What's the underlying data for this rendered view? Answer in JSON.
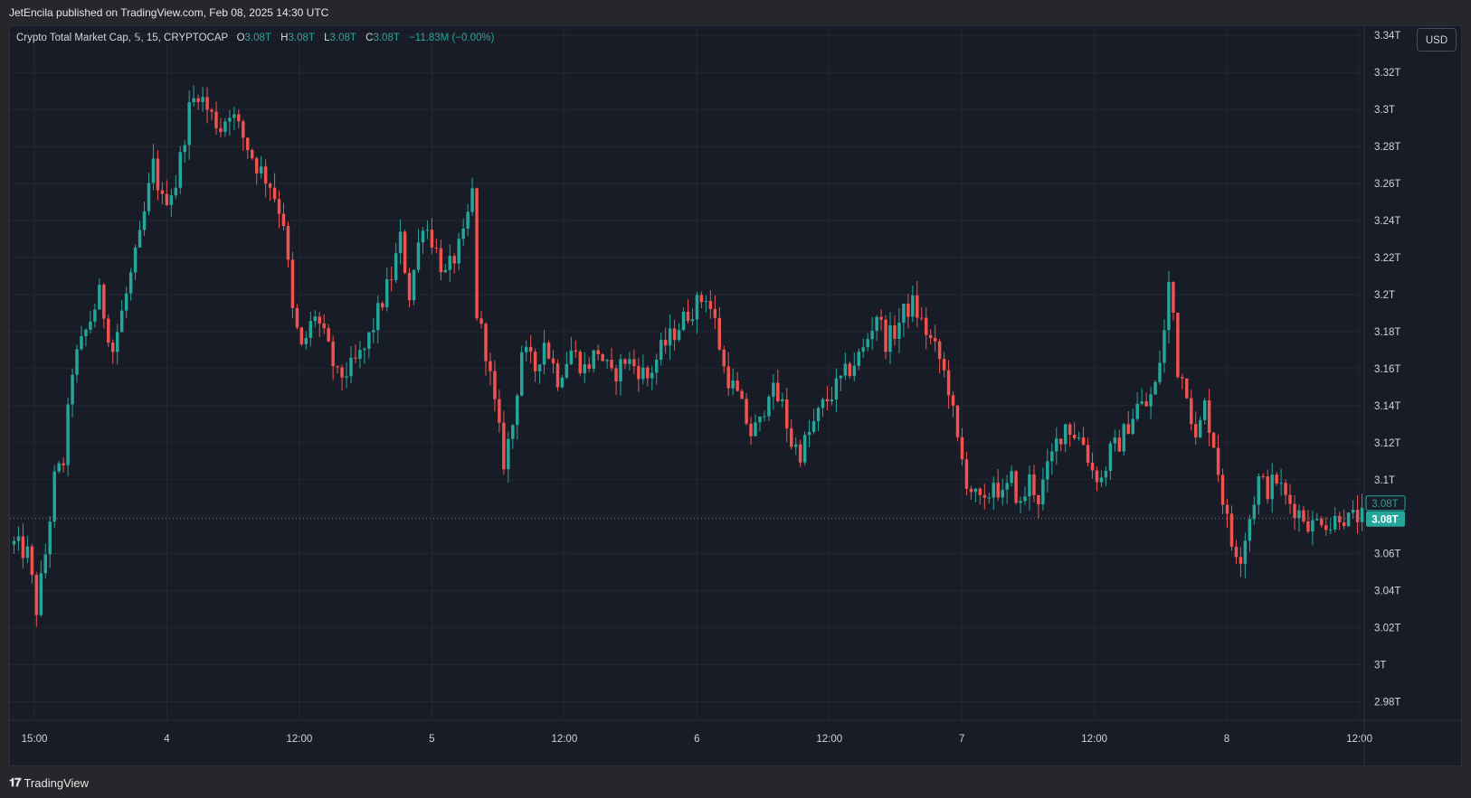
{
  "publisher_line": "JetEncila published on TradingView.com, Feb 08, 2025 14:30 UTC",
  "legend": {
    "symbol": "Crypto Total Market Cap, 𝕊, 15, CRYPTOCAP",
    "open_label": "O",
    "open": "3.08T",
    "high_label": "H",
    "high": "3.08T",
    "low_label": "L",
    "low": "3.08T",
    "close_label": "C",
    "close": "3.08T",
    "change": "−11.83M (−0.00%)"
  },
  "currency_button": "USD",
  "footer_logo": "TradingView",
  "colors": {
    "up": "#26a69a",
    "down": "#ef5350",
    "background": "#181c27",
    "grid": "#242733",
    "text": "#d1d4dc"
  },
  "chart_data": {
    "type": "candlestick",
    "interval": "15",
    "ylim": [
      2.97,
      3.345
    ],
    "y_ticks": [
      "2.98T",
      "3T",
      "3.02T",
      "3.04T",
      "3.06T",
      "3.08T",
      "3.1T",
      "3.12T",
      "3.14T",
      "3.16T",
      "3.18T",
      "3.2T",
      "3.22T",
      "3.24T",
      "3.26T",
      "3.28T",
      "3.3T",
      "3.32T",
      "3.34T"
    ],
    "x_ticks": [
      "15:00",
      "4",
      "12:00",
      "5",
      "12:00",
      "6",
      "12:00",
      "7",
      "12:00",
      "8",
      "12:00"
    ],
    "last_price_label": "3.08T",
    "last_close_label": "3.08T",
    "last_price": 3.079,
    "grid": true,
    "legend_position": "top-left",
    "approx_path": [
      [
        0,
        3.065
      ],
      [
        3,
        3.06
      ],
      [
        5,
        3.03
      ],
      [
        7,
        3.06
      ],
      [
        9,
        3.1
      ],
      [
        11,
        3.11
      ],
      [
        13,
        3.16
      ],
      [
        16,
        3.18
      ],
      [
        19,
        3.2
      ],
      [
        22,
        3.17
      ],
      [
        25,
        3.2
      ],
      [
        28,
        3.23
      ],
      [
        31,
        3.27
      ],
      [
        33,
        3.25
      ],
      [
        36,
        3.26
      ],
      [
        39,
        3.3
      ],
      [
        41,
        3.31
      ],
      [
        43,
        3.3
      ],
      [
        46,
        3.29
      ],
      [
        48,
        3.3
      ],
      [
        51,
        3.285
      ],
      [
        54,
        3.27
      ],
      [
        57,
        3.26
      ],
      [
        60,
        3.24
      ],
      [
        62,
        3.19
      ],
      [
        64,
        3.17
      ],
      [
        67,
        3.19
      ],
      [
        70,
        3.17
      ],
      [
        72,
        3.155
      ],
      [
        75,
        3.16
      ],
      [
        78,
        3.17
      ],
      [
        81,
        3.19
      ],
      [
        84,
        3.21
      ],
      [
        86,
        3.23
      ],
      [
        88,
        3.2
      ],
      [
        91,
        3.24
      ],
      [
        93,
        3.23
      ],
      [
        96,
        3.21
      ],
      [
        98,
        3.22
      ],
      [
        100,
        3.23
      ],
      [
        102,
        3.255
      ],
      [
        103,
        3.19
      ],
      [
        105,
        3.17
      ],
      [
        107,
        3.14
      ],
      [
        109,
        3.11
      ],
      [
        111,
        3.13
      ],
      [
        113,
        3.17
      ],
      [
        116,
        3.16
      ],
      [
        118,
        3.175
      ],
      [
        121,
        3.155
      ],
      [
        124,
        3.17
      ],
      [
        127,
        3.16
      ],
      [
        130,
        3.17
      ],
      [
        133,
        3.155
      ],
      [
        136,
        3.165
      ],
      [
        139,
        3.16
      ],
      [
        141,
        3.155
      ],
      [
        144,
        3.17
      ],
      [
        147,
        3.18
      ],
      [
        150,
        3.19
      ],
      [
        152,
        3.195
      ],
      [
        154,
        3.2
      ],
      [
        156,
        3.185
      ],
      [
        158,
        3.16
      ],
      [
        161,
        3.145
      ],
      [
        164,
        3.125
      ],
      [
        166,
        3.13
      ],
      [
        168,
        3.15
      ],
      [
        171,
        3.14
      ],
      [
        173,
        3.12
      ],
      [
        175,
        3.115
      ],
      [
        177,
        3.125
      ],
      [
        180,
        3.14
      ],
      [
        183,
        3.15
      ],
      [
        186,
        3.16
      ],
      [
        189,
        3.17
      ],
      [
        192,
        3.19
      ],
      [
        194,
        3.175
      ],
      [
        196,
        3.18
      ],
      [
        198,
        3.19
      ],
      [
        200,
        3.195
      ],
      [
        202,
        3.185
      ],
      [
        204,
        3.175
      ],
      [
        206,
        3.165
      ],
      [
        208,
        3.15
      ],
      [
        210,
        3.12
      ],
      [
        212,
        3.1
      ],
      [
        214,
        3.09
      ],
      [
        216,
        3.085
      ],
      [
        218,
        3.1
      ],
      [
        220,
        3.09
      ],
      [
        222,
        3.1
      ],
      [
        224,
        3.085
      ],
      [
        226,
        3.1
      ],
      [
        228,
        3.09
      ],
      [
        230,
        3.105
      ],
      [
        232,
        3.12
      ],
      [
        234,
        3.13
      ],
      [
        236,
        3.125
      ],
      [
        238,
        3.12
      ],
      [
        240,
        3.105
      ],
      [
        242,
        3.1
      ],
      [
        244,
        3.115
      ],
      [
        246,
        3.12
      ],
      [
        248,
        3.13
      ],
      [
        250,
        3.14
      ],
      [
        252,
        3.14
      ],
      [
        254,
        3.15
      ],
      [
        256,
        3.18
      ],
      [
        257,
        3.205
      ],
      [
        258,
        3.19
      ],
      [
        259,
        3.16
      ],
      [
        261,
        3.15
      ],
      [
        263,
        3.12
      ],
      [
        265,
        3.14
      ],
      [
        267,
        3.12
      ],
      [
        269,
        3.09
      ],
      [
        271,
        3.065
      ],
      [
        273,
        3.06
      ],
      [
        275,
        3.08
      ],
      [
        277,
        3.1
      ],
      [
        279,
        3.095
      ],
      [
        281,
        3.1
      ],
      [
        283,
        3.09
      ],
      [
        285,
        3.085
      ],
      [
        287,
        3.08
      ],
      [
        289,
        3.075
      ],
      [
        291,
        3.08
      ],
      [
        293,
        3.075
      ],
      [
        295,
        3.082
      ],
      [
        297,
        3.078
      ],
      [
        299,
        3.08
      ],
      [
        300,
        3.079
      ]
    ]
  }
}
